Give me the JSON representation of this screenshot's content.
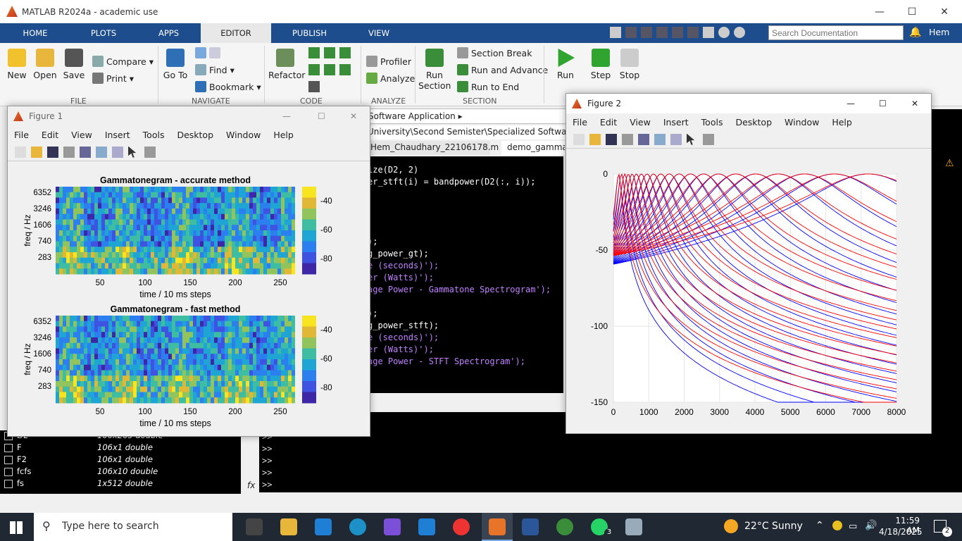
{
  "window": {
    "title": "MATLAB R2024a - academic use"
  },
  "tabs": [
    {
      "label": "HOME"
    },
    {
      "label": "PLOTS"
    },
    {
      "label": "APPS"
    },
    {
      "label": "EDITOR"
    },
    {
      "label": "PUBLISH"
    },
    {
      "label": "VIEW"
    }
  ],
  "search": {
    "placeholder": "Search Documentation"
  },
  "user": "Hem",
  "ribbon": {
    "file": {
      "new": "New",
      "open": "Open",
      "save": "Save",
      "compare": "Compare",
      "print": "Print",
      "group": "FILE"
    },
    "navigate": {
      "goto": "Go To",
      "find": "Find",
      "bookmark": "Bookmark",
      "group": "NAVIGATE"
    },
    "code": {
      "refactor": "Refactor",
      "group": "CODE"
    },
    "analyze": {
      "profiler": "Profiler",
      "analyze": "Analyze",
      "group": "ANALYZE"
    },
    "section": {
      "run_section": "Run Section",
      "section_break": "Section Break",
      "run_advance": "Run and Advance",
      "run_end": "Run to End",
      "group": "SECTION"
    },
    "run": {
      "run": "Run",
      "step": "Step",
      "stop": "Stop"
    }
  },
  "path": {
    "crumb": "Software Application",
    "full": "University\\Second Semister\\Specialized Software Appli"
  },
  "editor": {
    "tabs": [
      "Hem_Chaudhary_22106178.m",
      "demo_gammat"
    ],
    "lines": [
      "ize(D2, 2)",
      "er_stft(i) = bandpower(D2(:, i));",
      "",
      "",
      "",
      "",
      ");",
      "g_power_gt);",
      "e (seconds)');",
      "er (Watts)');",
      "age Power - Gammatone Spectrogram');",
      "",
      ");",
      "g_power_stft);",
      "e (seconds)');",
      "er (Watts)');",
      "age Power - STFT Spectrogram');"
    ]
  },
  "command": {
    "prompt": ">>",
    "fx": "fx"
  },
  "workspace": [
    {
      "name": "D2",
      "value": "106x265 double"
    },
    {
      "name": "F",
      "value": "106x1 double"
    },
    {
      "name": "F2",
      "value": "106x1 double"
    },
    {
      "name": "fcfs",
      "value": "106x10 double"
    },
    {
      "name": "fs",
      "value": "1x512 double"
    }
  ],
  "figure1": {
    "title": "Figure 1",
    "menu": [
      "File",
      "Edit",
      "View",
      "Insert",
      "Tools",
      "Desktop",
      "Window",
      "Help"
    ],
    "plots": [
      {
        "title": "Gammatonegram - accurate method",
        "ylabel": "freq / Hz",
        "xlabel": "time / 10 ms steps",
        "yticks": [
          "6352",
          "3246",
          "1606",
          "740",
          "283"
        ],
        "xticks": [
          "50",
          "100",
          "150",
          "200",
          "250"
        ],
        "cticks": [
          "-40",
          "-60",
          "-80"
        ]
      },
      {
        "title": "Gammatonegram - fast method",
        "ylabel": "freq / Hz",
        "xlabel": "time / 10 ms steps",
        "yticks": [
          "6352",
          "3246",
          "1606",
          "740",
          "283"
        ],
        "xticks": [
          "50",
          "100",
          "150",
          "200",
          "250"
        ],
        "cticks": [
          "-40",
          "-60",
          "-80"
        ]
      }
    ]
  },
  "figure2": {
    "title": "Figure 2",
    "menu": [
      "File",
      "Edit",
      "View",
      "Insert",
      "Tools",
      "Desktop",
      "Window",
      "Help"
    ]
  },
  "chart_data": [
    {
      "type": "line",
      "title": "",
      "xlabel": "",
      "ylabel": "",
      "xlim": [
        0,
        8000
      ],
      "ylim": [
        -150,
        0
      ],
      "xticks": [
        "0",
        "1000",
        "2000",
        "3000",
        "4000",
        "5000",
        "6000",
        "7000",
        "8000"
      ],
      "yticks": [
        "0",
        "-50",
        "-100",
        "-150"
      ],
      "series": [
        {
          "color": "#0000ff",
          "centers": [
            150,
            230,
            320,
            420,
            530,
            650,
            790,
            950,
            1130,
            1340,
            1580,
            1860,
            2180,
            2550,
            2970,
            3460,
            4020,
            4660,
            5400,
            6240,
            7200
          ]
        },
        {
          "color": "#ff0000",
          "centers": [
            150,
            230,
            320,
            420,
            530,
            650,
            790,
            950,
            1130,
            1340,
            1580,
            1860,
            2180,
            2550,
            2970,
            3460,
            4020,
            4660,
            5400,
            6240,
            7200
          ]
        }
      ]
    }
  ],
  "taskbar": {
    "search": "Type here to search",
    "weather": "22°C  Sunny",
    "time": "11:59 AM",
    "date": "4/18/2025",
    "notif": "2",
    "badge": "3"
  }
}
